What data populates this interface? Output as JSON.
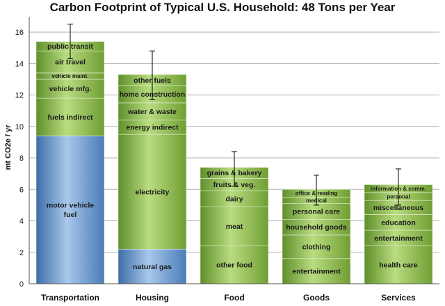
{
  "chart_data": {
    "type": "bar",
    "stacked": true,
    "title": "Carbon Footprint of Typical U.S. Household: 48 Tons per Year",
    "ylabel": "mt CO2e / yr",
    "xlabel": "",
    "ylim": [
      0,
      16.8
    ],
    "yticks": [
      0,
      2,
      4,
      6,
      8,
      10,
      12,
      14,
      16
    ],
    "grid": true,
    "colors": {
      "green": "#8cbf4a",
      "blue": "#5a8fc8",
      "grid": "#b0b0b0",
      "error": "#000000"
    },
    "categories": [
      {
        "name": "Transportation",
        "error": [
          14.3,
          16.5
        ],
        "segments": [
          {
            "label": "motor vehicle fuel",
            "lines": [
              "motor vehicle",
              "fuel"
            ],
            "value": 9.4,
            "color": "blue"
          },
          {
            "label": "fuels indirect",
            "value": 2.4,
            "color": "green"
          },
          {
            "label": "vehicle mfg.",
            "value": 1.2,
            "color": "green"
          },
          {
            "label": "vehicle maint.",
            "value": 0.4,
            "color": "green"
          },
          {
            "label": "air travel",
            "value": 1.4,
            "color": "green"
          },
          {
            "label": "public transit",
            "value": 0.6,
            "color": "green"
          }
        ]
      },
      {
        "name": "Housing",
        "error": [
          11.7,
          14.8
        ],
        "segments": [
          {
            "label": "natural gas",
            "value": 2.2,
            "color": "blue"
          },
          {
            "label": "electricity",
            "value": 7.3,
            "color": "green"
          },
          {
            "label": "energy indirect",
            "value": 0.9,
            "color": "green"
          },
          {
            "label": "water & waste",
            "value": 1.1,
            "color": "green"
          },
          {
            "label": "home construction",
            "value": 1.1,
            "color": "green"
          },
          {
            "label": "other fuels",
            "value": 0.7,
            "color": "green"
          }
        ]
      },
      {
        "name": "Food",
        "error": [
          6.2,
          8.4
        ],
        "segments": [
          {
            "label": "other food",
            "value": 2.4,
            "color": "green"
          },
          {
            "label": "meat",
            "value": 2.5,
            "color": "green"
          },
          {
            "label": "dairy",
            "value": 1.0,
            "color": "green"
          },
          {
            "label": "fruits & veg.",
            "value": 0.8,
            "color": "green"
          },
          {
            "label": "grains & bakery",
            "value": 0.7,
            "color": "green"
          }
        ]
      },
      {
        "name": "Goods",
        "error": [
          5.0,
          6.9
        ],
        "segments": [
          {
            "label": "entertainment",
            "value": 1.6,
            "color": "green"
          },
          {
            "label": "clothing",
            "value": 1.5,
            "color": "green"
          },
          {
            "label": "household goods",
            "value": 1.0,
            "color": "green"
          },
          {
            "label": "personal care",
            "value": 1.0,
            "color": "green"
          },
          {
            "label": "medical",
            "value": 0.4,
            "color": "green"
          },
          {
            "label": "office & reading",
            "value": 0.5,
            "color": "green"
          }
        ]
      },
      {
        "name": "Services",
        "error": [
          5.0,
          7.3
        ],
        "segments": [
          {
            "label": "health care",
            "value": 2.4,
            "color": "green"
          },
          {
            "label": "entertainment",
            "value": 1.0,
            "color": "green"
          },
          {
            "label": "education",
            "value": 1.0,
            "color": "green"
          },
          {
            "label": "miscellaneous",
            "value": 0.9,
            "color": "green"
          },
          {
            "label": "personal",
            "value": 0.5,
            "color": "green"
          },
          {
            "label": "information & comm.",
            "value": 0.5,
            "color": "green"
          }
        ]
      }
    ]
  }
}
